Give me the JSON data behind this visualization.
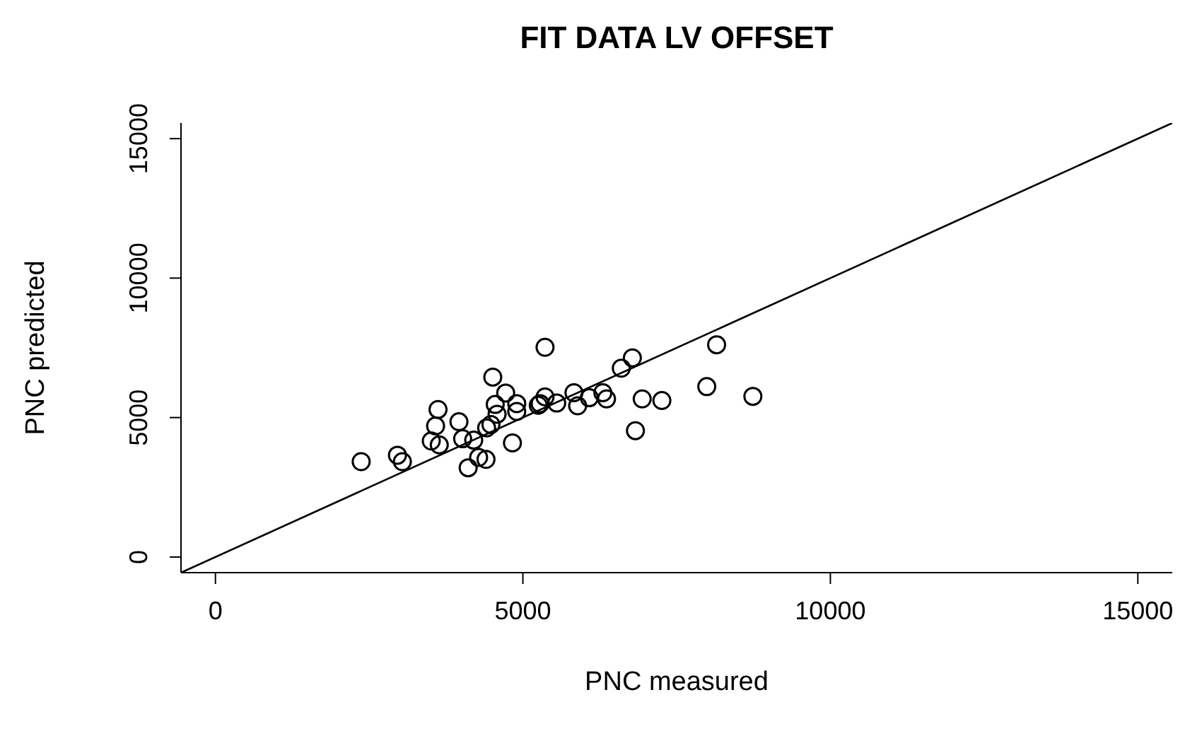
{
  "chart_data": {
    "type": "scatter",
    "title": "FIT DATA LV OFFSET",
    "xlabel": "PNC measured",
    "ylabel": "PNC predicted",
    "xlim": [
      -560,
      15560
    ],
    "ylim": [
      -560,
      15560
    ],
    "xticks": [
      0,
      5000,
      10000,
      15000
    ],
    "yticks": [
      0,
      5000,
      10000,
      15000
    ],
    "marker": "circle",
    "series": [
      {
        "type": "scatter",
        "color": "#000000",
        "x": [
          2370,
          2960,
          3040,
          3620,
          3580,
          3510,
          3640,
          3960,
          4020,
          4200,
          4110,
          4280,
          4400,
          4410,
          4480,
          4510,
          4550,
          4580,
          4720,
          4830,
          4900,
          4900,
          5250,
          5280,
          5360,
          5360,
          5550,
          5830,
          5890,
          6080,
          6300,
          6360,
          6600,
          6780,
          6830,
          6940,
          7260,
          7990,
          8150,
          8740
        ],
        "values": [
          3420,
          3650,
          3420,
          5290,
          4700,
          4160,
          4020,
          4850,
          4240,
          4190,
          3200,
          3570,
          3500,
          4630,
          4750,
          6450,
          5470,
          5120,
          5880,
          4090,
          5500,
          5220,
          5440,
          5500,
          7520,
          5740,
          5520,
          5890,
          5420,
          5710,
          5890,
          5670,
          6770,
          7140,
          4530,
          5670,
          5610,
          6110,
          7610,
          5760
        ]
      },
      {
        "type": "line",
        "color": "#000000",
        "line_style": "solid",
        "marker": "none",
        "x": [
          -560,
          15560
        ],
        "values": [
          -560,
          15560
        ]
      }
    ]
  }
}
